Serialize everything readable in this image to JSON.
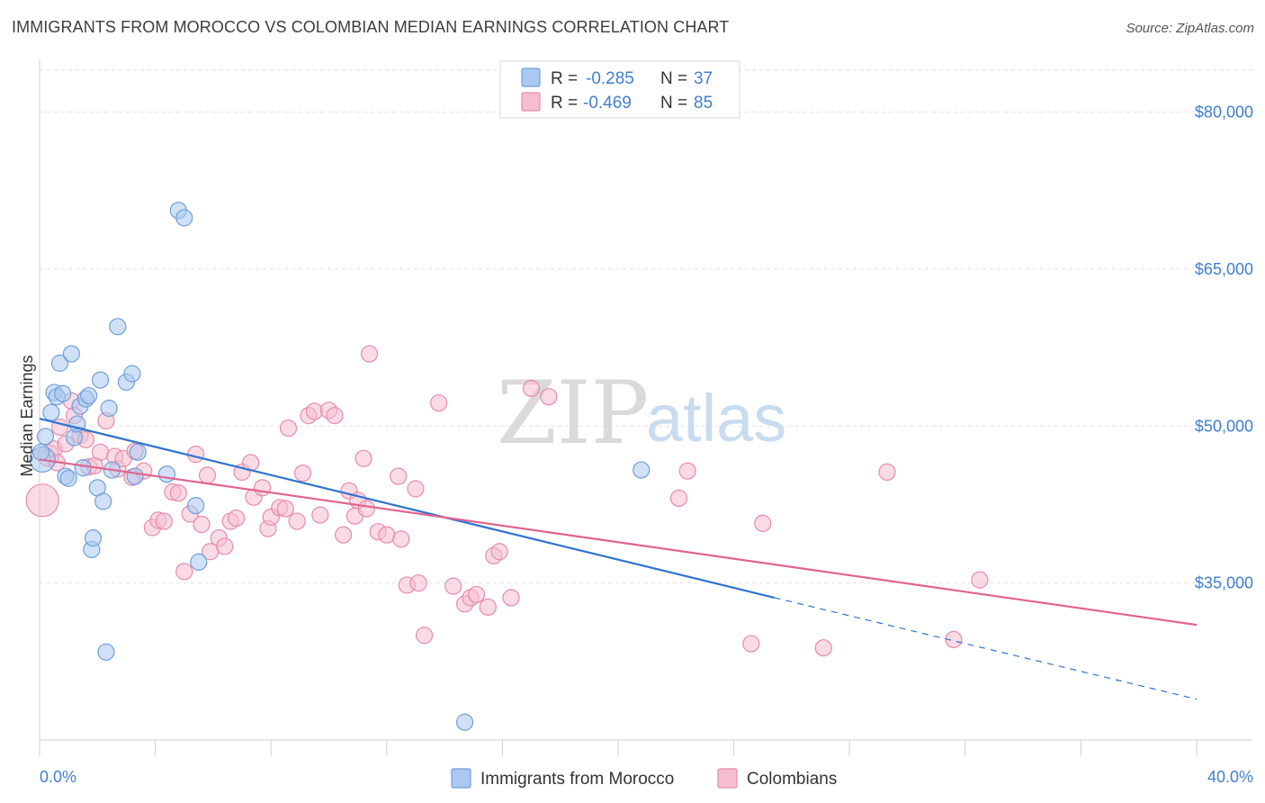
{
  "title": "IMMIGRANTS FROM MOROCCO VS COLOMBIAN MEDIAN EARNINGS CORRELATION CHART",
  "source": "Source: ZipAtlas.com",
  "watermark": {
    "zip": "ZIP",
    "atlas": "atlas"
  },
  "colors": {
    "blue_fill": "#aac8f0",
    "blue_stroke": "#6f9fd8",
    "blue_line": "#2f74d0",
    "pink_fill": "#f6bdd0",
    "pink_stroke": "#e88aab",
    "pink_line": "#e0648f",
    "axis_text": "#3f7fd0"
  },
  "legend": {
    "rows": [
      {
        "r_label": "R = ",
        "r_value": "-0.285",
        "n_label": "N = ",
        "n_value": "37"
      },
      {
        "r_label": "R = ",
        "r_value": "-0.469",
        "n_label": "N = ",
        "n_value": "85"
      }
    ]
  },
  "bottom_legend": [
    "Immigrants from Morocco",
    "Colombians"
  ],
  "chart_data": {
    "type": "scatter",
    "title": "IMMIGRANTS FROM MOROCCO VS COLOMBIAN MEDIAN EARNINGS CORRELATION CHART",
    "xlabel": "",
    "ylabel": "Median Earnings",
    "xlim": [
      0,
      40
    ],
    "ylim": [
      20000,
      84000
    ],
    "x_tick_labels": [
      "0.0%",
      "40.0%"
    ],
    "y_ticks": [
      35000,
      50000,
      65000,
      80000
    ],
    "y_tick_labels": [
      "$35,000",
      "$50,000",
      "$65,000",
      "$80,000"
    ],
    "grid": true,
    "legend_position": "top-center",
    "series": [
      {
        "name": "Immigrants from Morocco",
        "r": -0.285,
        "n": 37,
        "trend": {
          "x0": 0,
          "y0": 50700,
          "x1": 25.4,
          "y1": 33600,
          "dash_to_x": 40,
          "dash_to_y": 23900
        },
        "points": [
          [
            0.1,
            46800,
            14
          ],
          [
            0.2,
            49000,
            9
          ],
          [
            0.4,
            51300,
            9
          ],
          [
            0.5,
            53200,
            9
          ],
          [
            0.6,
            52800,
            9
          ],
          [
            0.7,
            56000,
            9
          ],
          [
            0.8,
            53100,
            9
          ],
          [
            0.9,
            45200,
            9
          ],
          [
            1.0,
            45000,
            9
          ],
          [
            1.1,
            56900,
            9
          ],
          [
            1.2,
            48900,
            9
          ],
          [
            1.3,
            50200,
            9
          ],
          [
            1.4,
            51900,
            9
          ],
          [
            1.5,
            46000,
            9
          ],
          [
            1.6,
            52600,
            9
          ],
          [
            1.7,
            52900,
            9
          ],
          [
            1.8,
            38200,
            9
          ],
          [
            1.85,
            39300,
            9
          ],
          [
            2.0,
            44100,
            9
          ],
          [
            2.1,
            54400,
            9
          ],
          [
            2.2,
            42800,
            9
          ],
          [
            2.3,
            28400,
            9
          ],
          [
            2.4,
            51700,
            9
          ],
          [
            2.5,
            45800,
            9
          ],
          [
            2.7,
            59500,
            9
          ],
          [
            3.0,
            54200,
            9
          ],
          [
            3.2,
            55000,
            9
          ],
          [
            3.3,
            45200,
            9
          ],
          [
            3.4,
            47500,
            9
          ],
          [
            4.4,
            45400,
            9
          ],
          [
            4.8,
            70600,
            9
          ],
          [
            5.0,
            69900,
            9
          ],
          [
            5.4,
            42400,
            9
          ],
          [
            5.5,
            37000,
            9
          ],
          [
            20.8,
            45800,
            9
          ],
          [
            14.7,
            21700,
            9
          ],
          [
            0.05,
            47500,
            9
          ]
        ]
      },
      {
        "name": "Colombians",
        "r": -0.469,
        "n": 85,
        "trend": {
          "x0": 0,
          "y0": 46800,
          "x1": 40,
          "y1": 31000
        },
        "points": [
          [
            0.1,
            42900,
            18
          ],
          [
            0.3,
            47200,
            12
          ],
          [
            0.5,
            47800,
            9
          ],
          [
            0.7,
            49900,
            9
          ],
          [
            0.9,
            48300,
            9
          ],
          [
            1.1,
            52400,
            9
          ],
          [
            1.2,
            51000,
            9
          ],
          [
            1.4,
            49100,
            9
          ],
          [
            1.6,
            48700,
            9
          ],
          [
            1.7,
            46100,
            9
          ],
          [
            2.1,
            47500,
            9
          ],
          [
            2.3,
            50500,
            9
          ],
          [
            2.6,
            47100,
            9
          ],
          [
            2.7,
            45900,
            9
          ],
          [
            2.9,
            46900,
            9
          ],
          [
            3.2,
            45100,
            9
          ],
          [
            3.3,
            47600,
            9
          ],
          [
            3.6,
            45700,
            9
          ],
          [
            3.9,
            40300,
            9
          ],
          [
            4.1,
            41000,
            9
          ],
          [
            4.3,
            40900,
            9
          ],
          [
            4.6,
            43700,
            9
          ],
          [
            4.8,
            43600,
            9
          ],
          [
            5.0,
            36100,
            9
          ],
          [
            5.2,
            41600,
            9
          ],
          [
            5.4,
            47300,
            9
          ],
          [
            5.6,
            40600,
            9
          ],
          [
            5.8,
            45300,
            9
          ],
          [
            5.9,
            38000,
            9
          ],
          [
            6.2,
            39300,
            9
          ],
          [
            6.4,
            38500,
            9
          ],
          [
            6.6,
            40900,
            9
          ],
          [
            6.8,
            41200,
            9
          ],
          [
            7.0,
            45600,
            9
          ],
          [
            7.3,
            46500,
            9
          ],
          [
            7.4,
            43200,
            9
          ],
          [
            7.7,
            44100,
            9
          ],
          [
            7.9,
            40200,
            9
          ],
          [
            8.0,
            41300,
            9
          ],
          [
            8.3,
            42200,
            9
          ],
          [
            8.5,
            42100,
            9
          ],
          [
            8.6,
            49800,
            9
          ],
          [
            8.9,
            40900,
            9
          ],
          [
            9.1,
            45500,
            9
          ],
          [
            9.3,
            51000,
            9
          ],
          [
            9.5,
            51400,
            9
          ],
          [
            9.7,
            41500,
            9
          ],
          [
            10.0,
            51500,
            9
          ],
          [
            10.2,
            51000,
            9
          ],
          [
            10.5,
            39600,
            9
          ],
          [
            10.7,
            43800,
            9
          ],
          [
            10.9,
            41400,
            9
          ],
          [
            11.0,
            42900,
            9
          ],
          [
            11.3,
            42100,
            9
          ],
          [
            11.2,
            46900,
            9
          ],
          [
            11.4,
            56900,
            9
          ],
          [
            11.7,
            39900,
            9
          ],
          [
            12.0,
            39600,
            9
          ],
          [
            12.4,
            45200,
            9
          ],
          [
            12.5,
            39200,
            9
          ],
          [
            12.7,
            34800,
            9
          ],
          [
            13.0,
            44000,
            9
          ],
          [
            13.1,
            35000,
            9
          ],
          [
            13.3,
            30000,
            9
          ],
          [
            13.8,
            52200,
            9
          ],
          [
            14.3,
            34700,
            9
          ],
          [
            14.7,
            33000,
            9
          ],
          [
            14.9,
            33600,
            9
          ],
          [
            15.1,
            33900,
            9
          ],
          [
            15.5,
            32700,
            9
          ],
          [
            15.7,
            37600,
            9
          ],
          [
            15.9,
            38000,
            9
          ],
          [
            16.3,
            33600,
            9
          ],
          [
            17.0,
            53600,
            9
          ],
          [
            17.6,
            52800,
            9
          ],
          [
            22.1,
            43100,
            9
          ],
          [
            22.4,
            45700,
            9
          ],
          [
            24.6,
            29200,
            9
          ],
          [
            25.0,
            40700,
            9
          ],
          [
            27.1,
            28800,
            9
          ],
          [
            29.3,
            45600,
            9
          ],
          [
            31.6,
            29600,
            9
          ],
          [
            32.5,
            35300,
            9
          ],
          [
            1.9,
            46200,
            9
          ],
          [
            0.6,
            46500,
            9
          ]
        ]
      }
    ]
  }
}
